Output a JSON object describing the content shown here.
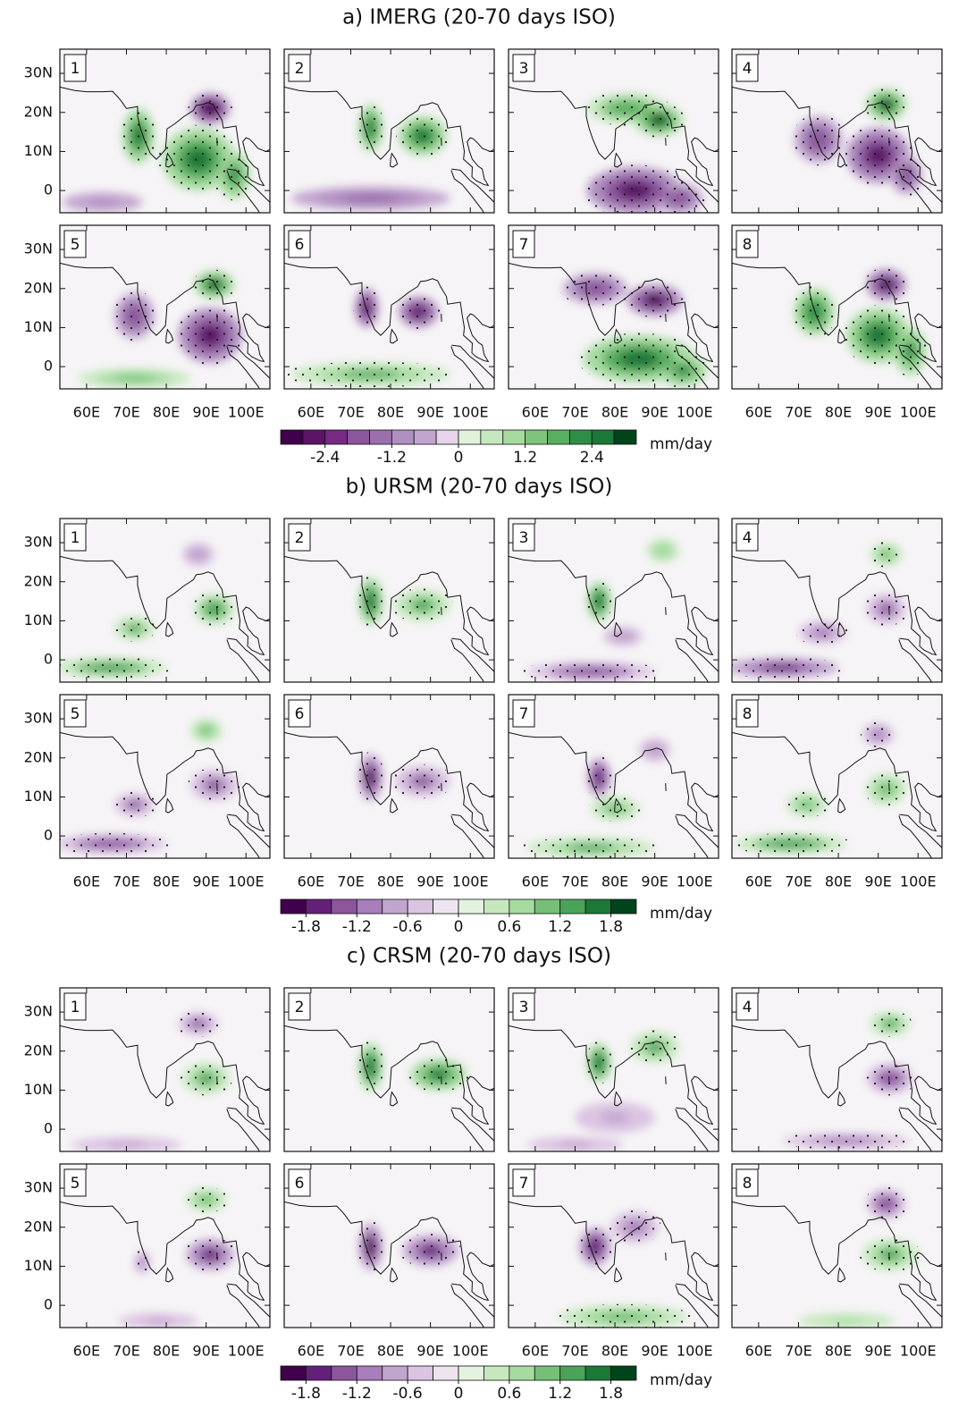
{
  "map": {
    "xlim": [
      53.3,
      106
    ],
    "ylim": [
      -5.7,
      36.2
    ],
    "xticks": [
      {
        "value": 60,
        "label": "60E"
      },
      {
        "value": 70,
        "label": "70E"
      },
      {
        "value": 80,
        "label": "80E"
      },
      {
        "value": 90,
        "label": "90E"
      },
      {
        "value": 100,
        "label": "100E"
      }
    ],
    "yticks": [
      {
        "value": 30,
        "label": "30N"
      },
      {
        "value": 20,
        "label": "20N"
      },
      {
        "value": 10,
        "label": "10N"
      },
      0
    ]
  },
  "sections": [
    {
      "title": "a) IMERG (20-70 days ISO)",
      "panels": [
        "1",
        "2",
        "3",
        "4",
        "5",
        "6",
        "7",
        "8"
      ],
      "colorbar": {
        "lim": [
          -3.2,
          3.2
        ],
        "ticks": [
          -2.4,
          -1.2,
          0,
          1.2,
          2.4
        ],
        "unit": "mm/day",
        "colors": [
          "#40004b",
          "#5a1366",
          "#762a83",
          "#8c569c",
          "#9970ab",
          "#b08fc1",
          "#c2a5cf",
          "#e7d4e8",
          "#e0f2dc",
          "#c6e8bf",
          "#a6dba0",
          "#7fc47d",
          "#5aae61",
          "#2f8e46",
          "#1b7837",
          "#00441b"
        ]
      }
    },
    {
      "title": "b) URSM (20-70 days ISO)",
      "panels": [
        "1",
        "2",
        "3",
        "4",
        "5",
        "6",
        "7",
        "8"
      ],
      "colorbar": {
        "lim": [
          -2.1,
          2.1
        ],
        "ticks": [
          -1.8,
          -1.2,
          -0.6,
          0,
          0.6,
          1.2,
          1.8
        ],
        "unit": "mm/day",
        "colors": [
          "#40004b",
          "#642078",
          "#8c569c",
          "#a77dbb",
          "#c2a5cf",
          "#dbc4e2",
          "#eee4f0",
          "#e4f3e0",
          "#c6e8bf",
          "#a6dba0",
          "#75bf76",
          "#4aa359",
          "#1b7837",
          "#00441b"
        ]
      }
    },
    {
      "title": "c) CRSM (20-70 days ISO)",
      "panels": [
        "1",
        "2",
        "3",
        "4",
        "5",
        "6",
        "7",
        "8"
      ],
      "colorbar": {
        "lim": [
          -2.1,
          2.1
        ],
        "ticks": [
          -1.8,
          -1.2,
          -0.6,
          0,
          0.6,
          1.2,
          1.8
        ],
        "unit": "mm/day",
        "colors": [
          "#40004b",
          "#642078",
          "#8c569c",
          "#a77dbb",
          "#c2a5cf",
          "#dbc4e2",
          "#eee4f0",
          "#e4f3e0",
          "#c6e8bf",
          "#a6dba0",
          "#75bf76",
          "#4aa359",
          "#1b7837",
          "#00441b"
        ]
      }
    }
  ]
}
